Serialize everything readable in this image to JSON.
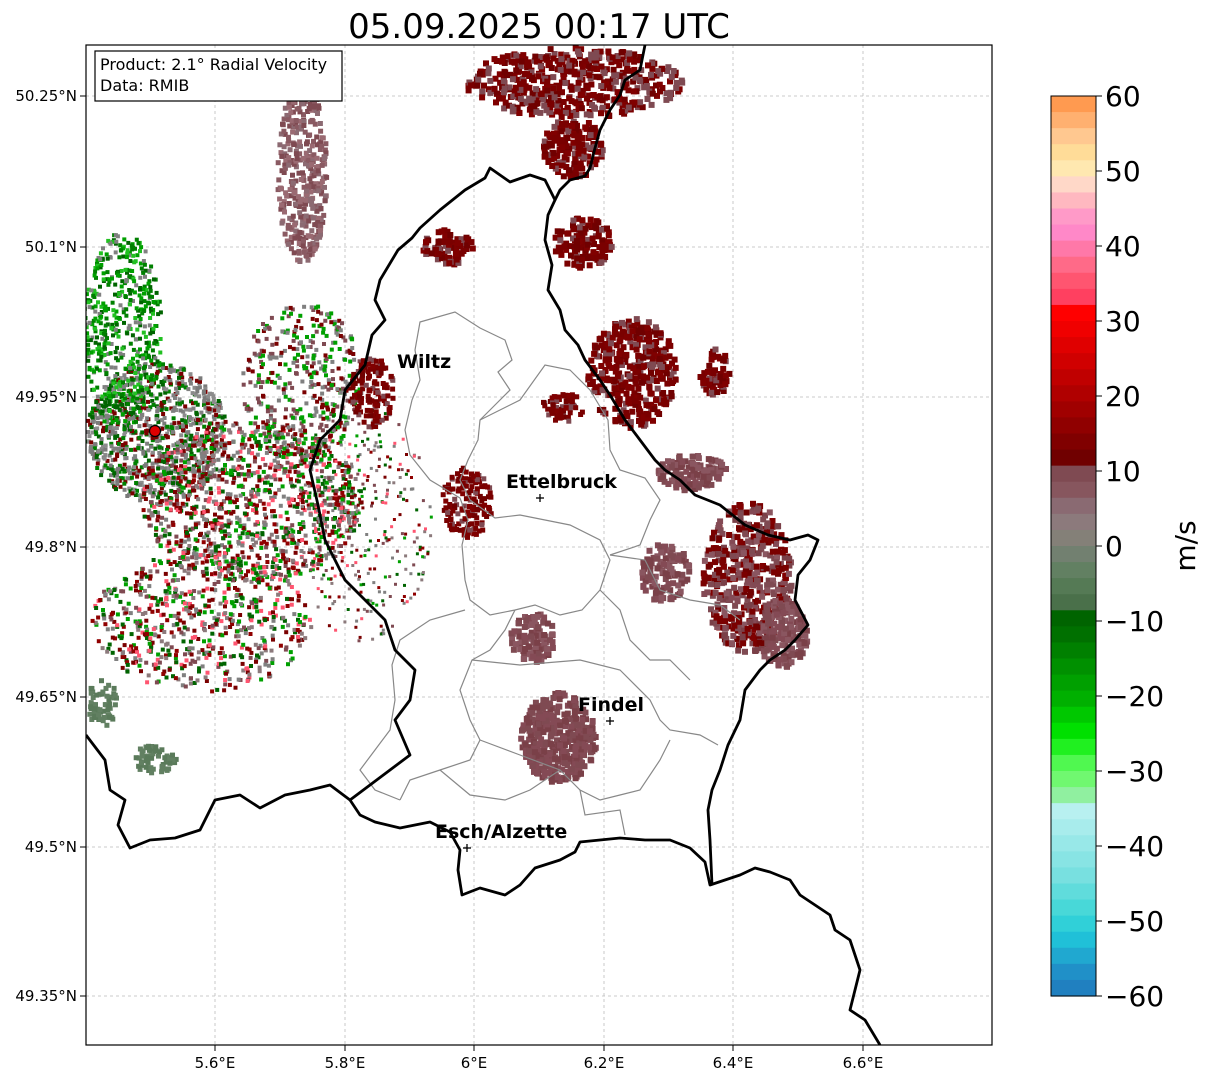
{
  "title": "05.09.2025 00:17 UTC",
  "info_box": {
    "product": "Product: 2.1° Radial Velocity",
    "data": "Data: RMIB"
  },
  "lat_labels": [
    "50.25°N",
    "50.1°N",
    "49.95°N",
    "49.8°N",
    "49.65°N",
    "49.5°N",
    "49.35°N"
  ],
  "lon_labels": [
    "5.6°E",
    "5.8°E",
    "6°E",
    "6.2°E",
    "6.4°E",
    "6.6°E"
  ],
  "cities": [
    {
      "name": "Wiltz"
    },
    {
      "name": "Ettelbruck"
    },
    {
      "name": "Findel"
    },
    {
      "name": "Esch/Alzette"
    }
  ],
  "colorbar": {
    "unit": "m/s",
    "tick_labels": [
      "60",
      "50",
      "40",
      "30",
      "20",
      "10",
      "0",
      "−10",
      "−20",
      "−30",
      "−40",
      "−50",
      "−60"
    ],
    "range": [
      -60,
      60
    ]
  },
  "colors": {
    "inbound_strong": "#006400",
    "inbound": "#00cc00",
    "near_zero": "#808080",
    "outbound": "#7a0000",
    "outbound_weak": "#7f4a52",
    "radar_site": "#e00000"
  }
}
